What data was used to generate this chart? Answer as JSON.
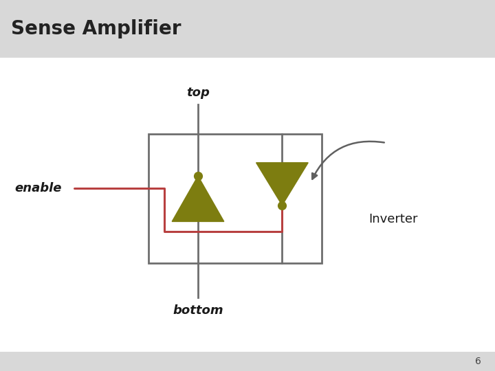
{
  "title": "Sense Amplifier",
  "title_fontsize": 20,
  "title_fontweight": "bold",
  "title_bg_color": "#d8d8d8",
  "slide_bg_color": "#ffffff",
  "page_number": "6",
  "olive_color": "#7d7d10",
  "red_wire_color": "#b84040",
  "box_color": "#6e6e6e",
  "arrow_color": "#606060",
  "enable_label": "enable",
  "top_label": "top",
  "bottom_label": "bottom",
  "inverter_label": "Inverter",
  "label_fontsize": 13,
  "inverter_fontsize": 13
}
